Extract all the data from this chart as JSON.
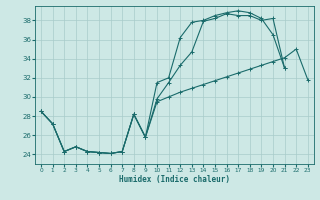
{
  "xlabel": "Humidex (Indice chaleur)",
  "xlim": [
    -0.5,
    23.5
  ],
  "ylim": [
    23.0,
    39.5
  ],
  "yticks": [
    24,
    26,
    28,
    30,
    32,
    34,
    36,
    38
  ],
  "xticks": [
    0,
    1,
    2,
    3,
    4,
    5,
    6,
    7,
    8,
    9,
    10,
    11,
    12,
    13,
    14,
    15,
    16,
    17,
    18,
    19,
    20,
    21,
    22,
    23
  ],
  "bg_color": "#cde8e5",
  "grid_color": "#a8ccca",
  "line_color": "#1a6b6b",
  "curve1_x": [
    0,
    1,
    2,
    3,
    4,
    5,
    6,
    7,
    8,
    9,
    10,
    11,
    12,
    13,
    14,
    15,
    16,
    17,
    18,
    19,
    20,
    21
  ],
  "curve1_y": [
    28.5,
    27.2,
    24.3,
    24.8,
    24.3,
    24.2,
    24.1,
    24.3,
    28.2,
    25.8,
    31.5,
    32.0,
    36.2,
    37.8,
    38.0,
    38.5,
    38.8,
    39.0,
    38.8,
    38.2,
    36.5,
    33.0
  ],
  "curve2_x": [
    0,
    1,
    2,
    3,
    4,
    5,
    6,
    7,
    8,
    9,
    10,
    11,
    12,
    13,
    14,
    15,
    16,
    17,
    18,
    19,
    20,
    21
  ],
  "curve2_y": [
    28.5,
    27.2,
    24.3,
    24.8,
    24.3,
    24.2,
    24.1,
    24.3,
    28.2,
    25.8,
    29.8,
    31.5,
    33.3,
    34.7,
    37.9,
    38.2,
    38.7,
    38.5,
    38.5,
    38.0,
    38.2,
    33.0
  ],
  "curve3_x": [
    0,
    1,
    2,
    3,
    4,
    5,
    6,
    7,
    8,
    9,
    10,
    11,
    12,
    13,
    14,
    15,
    16,
    17,
    18,
    19,
    20,
    21,
    22,
    23
  ],
  "curve3_y": [
    28.5,
    27.2,
    24.3,
    24.8,
    24.3,
    24.2,
    24.1,
    24.3,
    28.2,
    25.8,
    29.5,
    30.0,
    30.5,
    30.9,
    31.3,
    31.7,
    32.1,
    32.5,
    32.9,
    33.3,
    33.7,
    34.1,
    35.0,
    31.8
  ]
}
